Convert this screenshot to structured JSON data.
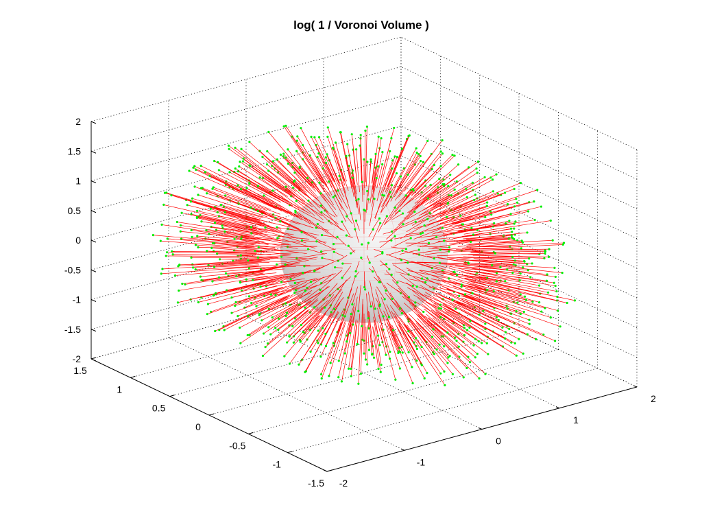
{
  "chart_data": {
    "type": "scatter",
    "projection": "3d",
    "title": "log( 1 / Voronoi Volume )",
    "grid": true,
    "legend": "none",
    "axes": {
      "x": {
        "ticks": [
          -2,
          -1,
          0,
          1,
          2
        ],
        "tick_labels": [
          "-2",
          "-1",
          "0",
          "1",
          "2"
        ],
        "lim": [
          -2,
          2
        ]
      },
      "y": {
        "ticks": [
          -1.5,
          -1,
          -0.5,
          0,
          0.5,
          1,
          1.5
        ],
        "tick_labels": [
          "-1.5",
          "-1",
          "-0.5",
          "0",
          "0.5",
          "1",
          "1.5"
        ],
        "lim": [
          -1.5,
          1.5
        ]
      },
      "z": {
        "ticks": [
          -2,
          -1.5,
          -1,
          -0.5,
          0,
          0.5,
          1,
          1.5,
          2
        ],
        "tick_labels": [
          "-2",
          "-1.5",
          "-1",
          "-0.5",
          "0",
          "0.5",
          "1",
          "1.5",
          "2"
        ],
        "lim": [
          -2,
          2
        ]
      }
    },
    "surface": {
      "shape": "unit sphere",
      "center": [
        0,
        0,
        0
      ],
      "radius": 1,
      "color": "#d8d8d8",
      "edge_color": "#e8a0a0"
    },
    "series": [
      {
        "kind": "stems",
        "color": "#ff0000",
        "description_count": 900,
        "length_range": [
          0.35,
          1.0
        ]
      },
      {
        "kind": "points",
        "color": "#00ee00",
        "marker": "dot"
      }
    ],
    "points_on_sphere": 900
  }
}
